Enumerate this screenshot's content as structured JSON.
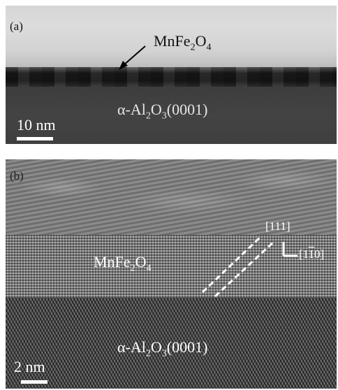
{
  "panel_a": {
    "letter": "(a)",
    "film_label": {
      "base": "MnFe",
      "sub1": "2",
      "mid": "O",
      "sub2": "4"
    },
    "substrate_label": {
      "pre": "α-Al",
      "sub1": "2",
      "mid": "O",
      "sub2": "3",
      "post": "(0001)"
    },
    "scale_label": "10 nm"
  },
  "panel_b": {
    "letter": "(b)",
    "film_label": {
      "base": "MnFe",
      "sub1": "2",
      "mid": "O",
      "sub2": "4"
    },
    "substrate_label": {
      "pre": "α-Al",
      "sub1": "2",
      "mid": "O",
      "sub2": "3",
      "post": "(0001)"
    },
    "scale_label": "2 nm",
    "direction_1": "[111]",
    "direction_2": "[1",
    "direction_2_bar": "1",
    "direction_2_end": "0]"
  }
}
